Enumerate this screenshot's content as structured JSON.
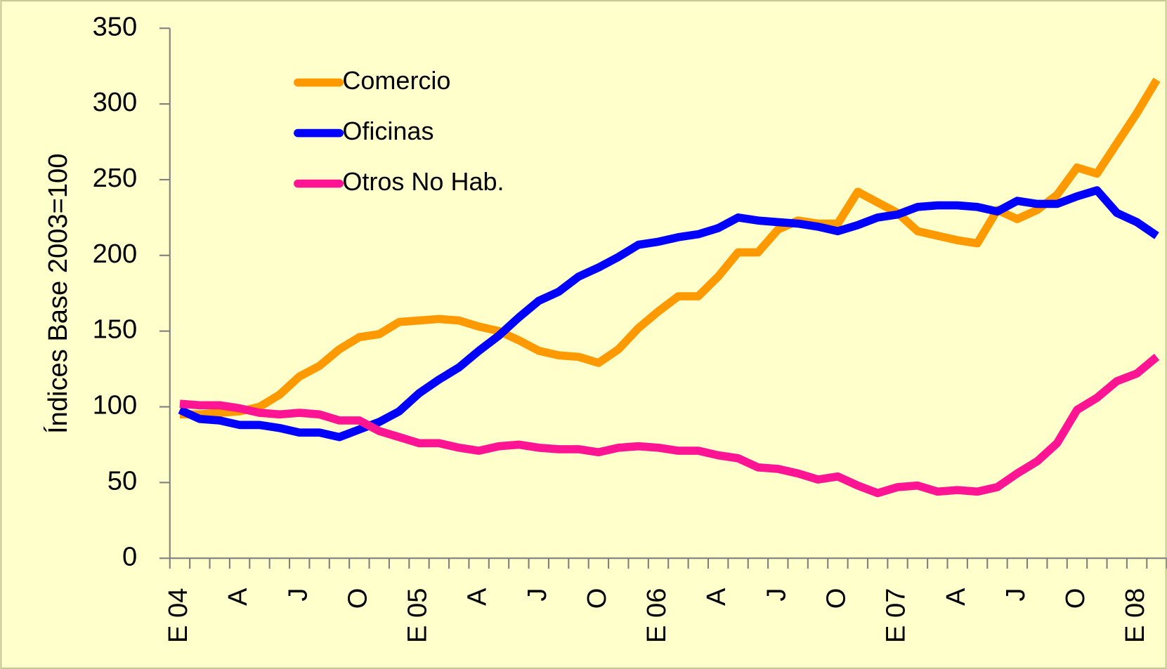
{
  "chart_data": {
    "type": "line",
    "y_label": "Índices Base 2003=100",
    "categories": [
      "E 04",
      null,
      null,
      "A",
      null,
      null,
      "J",
      null,
      null,
      "O",
      null,
      null,
      "E 05",
      null,
      null,
      "A",
      null,
      null,
      "J",
      null,
      null,
      "O",
      null,
      null,
      "E 06",
      null,
      null,
      "A",
      null,
      null,
      "J",
      null,
      null,
      "O",
      null,
      null,
      "E 07",
      null,
      null,
      "A",
      null,
      null,
      "J",
      null,
      null,
      "O",
      null,
      null,
      "E 08",
      null
    ],
    "series": [
      {
        "name": "Comercio",
        "color": "#ff9900",
        "values": [
          95,
          95,
          96,
          97,
          100,
          108,
          120,
          127,
          138,
          146,
          148,
          156,
          157,
          158,
          157,
          153,
          150,
          144,
          137,
          134,
          133,
          129,
          138,
          152,
          163,
          173,
          173,
          186,
          202,
          202,
          217,
          223,
          221,
          221,
          242,
          235,
          228,
          216,
          213,
          210,
          208,
          230,
          224,
          230,
          240,
          258,
          254,
          274,
          294,
          316
        ]
      },
      {
        "name": "Oficinas",
        "color": "#0000ff",
        "values": [
          98,
          92,
          91,
          88,
          88,
          86,
          83,
          83,
          80,
          85,
          90,
          97,
          109,
          118,
          126,
          137,
          147,
          159,
          170,
          176,
          186,
          192,
          199,
          207,
          209,
          212,
          214,
          218,
          225,
          223,
          222,
          221,
          219,
          216,
          220,
          225,
          227,
          232,
          233,
          233,
          232,
          229,
          236,
          234,
          234,
          239,
          243,
          228,
          222,
          213
        ]
      },
      {
        "name": "Otros No Hab.",
        "color": "#ff1493",
        "values": [
          102,
          101,
          101,
          99,
          96,
          95,
          96,
          95,
          91,
          91,
          84,
          80,
          76,
          76,
          73,
          71,
          74,
          75,
          73,
          72,
          72,
          70,
          73,
          74,
          73,
          71,
          71,
          68,
          66,
          60,
          59,
          56,
          52,
          54,
          48,
          43,
          47,
          48,
          44,
          45,
          44,
          47,
          56,
          64,
          76,
          98,
          106,
          117,
          122,
          133
        ]
      }
    ],
    "ylim": [
      0,
      350
    ],
    "yticks": [
      0,
      50,
      100,
      150,
      200,
      250,
      300,
      350
    ],
    "grid": false,
    "legend": "upper left"
  }
}
